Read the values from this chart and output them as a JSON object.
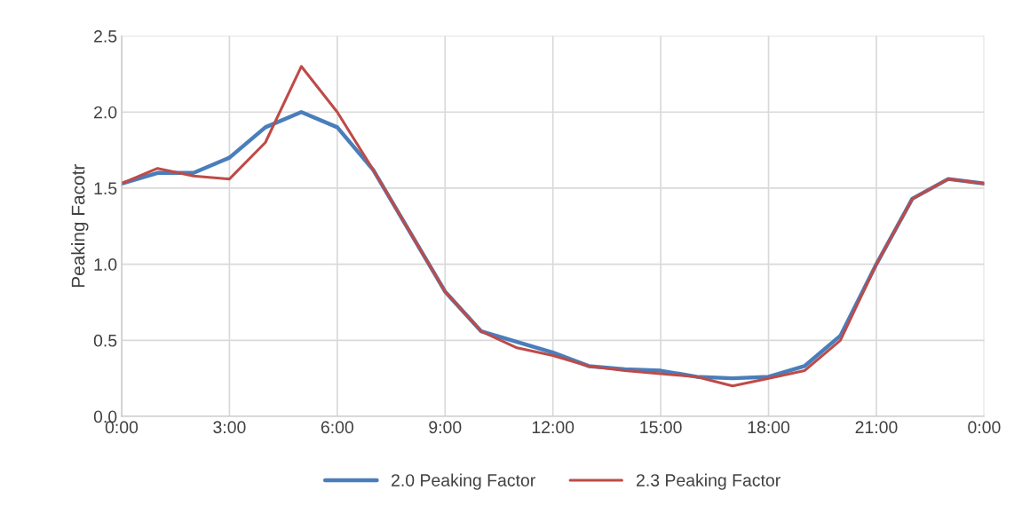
{
  "chart_data": {
    "type": "line",
    "ylabel": "Peaking Facotr",
    "x": [
      0,
      1,
      2,
      3,
      4,
      5,
      6,
      7,
      8,
      9,
      10,
      11,
      12,
      13,
      14,
      15,
      16,
      17,
      18,
      19,
      20,
      21,
      22,
      23,
      24
    ],
    "series": [
      {
        "name": "2.0 Peaking Factor",
        "color": "#4a7ebb",
        "values": [
          1.53,
          1.6,
          1.6,
          1.7,
          1.9,
          2.0,
          1.9,
          1.62,
          1.22,
          0.82,
          0.56,
          0.49,
          0.42,
          0.33,
          0.31,
          0.3,
          0.26,
          0.25,
          0.26,
          0.33,
          0.53,
          1.0,
          1.43,
          1.56,
          1.53
        ]
      },
      {
        "name": "2.3 Peaking Factor",
        "color": "#be4b48",
        "values": [
          1.53,
          1.63,
          1.58,
          1.56,
          1.8,
          2.3,
          2.0,
          1.62,
          1.22,
          0.82,
          0.56,
          0.45,
          0.4,
          0.33,
          0.3,
          0.28,
          0.26,
          0.2,
          0.25,
          0.3,
          0.5,
          1.0,
          1.43,
          1.56,
          1.53
        ]
      }
    ],
    "xlim": [
      0,
      24
    ],
    "xticks": [
      {
        "value": 0,
        "label": "0:00"
      },
      {
        "value": 3,
        "label": "3:00"
      },
      {
        "value": 6,
        "label": "6:00"
      },
      {
        "value": 9,
        "label": "9:00"
      },
      {
        "value": 12,
        "label": "12:00"
      },
      {
        "value": 15,
        "label": "15:00"
      },
      {
        "value": 18,
        "label": "18:00"
      },
      {
        "value": 21,
        "label": "21:00"
      },
      {
        "value": 24,
        "label": "0:00"
      }
    ],
    "ylim": [
      0,
      2.5
    ],
    "yticks": [
      {
        "value": 0,
        "label": "0.0"
      },
      {
        "value": 0.5,
        "label": "0.5"
      },
      {
        "value": 1,
        "label": "1.0"
      },
      {
        "value": 1.5,
        "label": "1.5"
      },
      {
        "value": 2,
        "label": "2.0"
      },
      {
        "value": 2.5,
        "label": "2.5"
      }
    ],
    "grid": true,
    "legend": "bottom",
    "marker": "none",
    "line_style": "solid"
  }
}
